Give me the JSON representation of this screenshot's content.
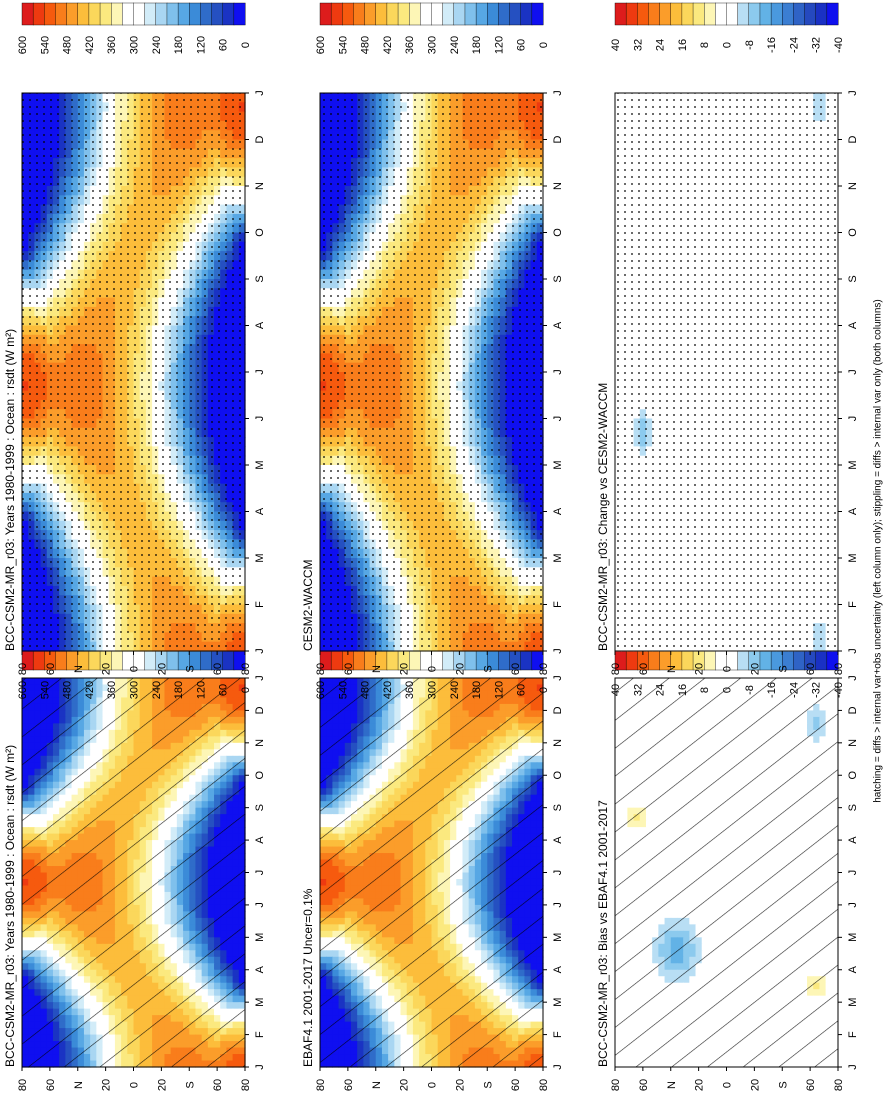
{
  "figure": {
    "footnote": "hatching = diffs > internal var+obs uncertainty (left column only); stippling = diffs > internal var only (both columns)"
  },
  "palettes": {
    "absolute": [
      "#dd1c1c",
      "#ee3a10",
      "#f65a0e",
      "#f97d1b",
      "#fb9d2a",
      "#fcbd3b",
      "#fbd75b",
      "#fbe97f",
      "#fdf6b6",
      "#ffffff",
      "#ffffff",
      "#d2ecf8",
      "#a9d6f2",
      "#7fc0ec",
      "#57a7e4",
      "#3b8bd8",
      "#2f6cc9",
      "#2550c1",
      "#1a33c3",
      "#0f0ff0"
    ],
    "difference": [
      "#dd1c1c",
      "#ee3a10",
      "#f65a0e",
      "#f97d1b",
      "#fb9d2a",
      "#fcbd3b",
      "#fbd75b",
      "#fbe97f",
      "#fdf6b6",
      "#ffffff",
      "#ffffff",
      "#b8def4",
      "#8ccaee",
      "#62b2e6",
      "#4a99de",
      "#3b7ed2",
      "#2f63c6",
      "#2549bf",
      "#1a31c4",
      "#0f10ee"
    ]
  },
  "chart_data": [
    {
      "type": "heatmap",
      "title": "BCC-CSM2-MR_r03: Years 1980-1999 : Ocean : rsdt (W m²)",
      "xlabel": "",
      "ylabel": "",
      "x": [
        "J",
        "F",
        "M",
        "A",
        "M",
        "J",
        "J",
        "A",
        "S",
        "O",
        "N",
        "D",
        "J"
      ],
      "y": [
        "80",
        "60",
        "N",
        "20",
        "0",
        "20",
        "S",
        "60",
        "80"
      ],
      "z_field": "insolation",
      "overlay": "hatching",
      "colorbar": {
        "palette": "absolute",
        "ticks": [
          "600",
          "540",
          "480",
          "420",
          "360",
          "300",
          "240",
          "180",
          "120",
          "60",
          "0"
        ],
        "range": [
          0,
          600
        ]
      }
    },
    {
      "type": "heatmap",
      "title": "BCC-CSM2-MR_r03: Years 1980-1999 : Ocean : rsdt (W m²)",
      "xlabel": "",
      "ylabel": "",
      "x": [
        "J",
        "F",
        "M",
        "A",
        "M",
        "J",
        "J",
        "A",
        "S",
        "O",
        "N",
        "D",
        "J"
      ],
      "y": [
        "80",
        "60",
        "N",
        "20",
        "0",
        "20",
        "S",
        "60",
        "80"
      ],
      "z_field": "insolation",
      "overlay": "stippling",
      "colorbar": {
        "palette": "absolute",
        "ticks": [
          "600",
          "540",
          "480",
          "420",
          "360",
          "300",
          "240",
          "180",
          "120",
          "60",
          "0"
        ],
        "range": [
          0,
          600
        ]
      }
    },
    {
      "type": "heatmap",
      "title": "EBAF4.1 2001-2017 Uncer=0.1%",
      "xlabel": "",
      "ylabel": "",
      "x": [
        "J",
        "F",
        "M",
        "A",
        "M",
        "J",
        "J",
        "A",
        "S",
        "O",
        "N",
        "D",
        "J"
      ],
      "y": [
        "80",
        "60",
        "N",
        "20",
        "0",
        "20",
        "S",
        "60",
        "80"
      ],
      "z_field": "insolation",
      "overlay": "hatching",
      "colorbar": {
        "palette": "absolute",
        "ticks": [
          "600",
          "540",
          "480",
          "420",
          "360",
          "300",
          "240",
          "180",
          "120",
          "60",
          "0"
        ],
        "range": [
          0,
          600
        ]
      }
    },
    {
      "type": "heatmap",
      "title": "CESM2-WACCM",
      "xlabel": "",
      "ylabel": "",
      "x": [
        "J",
        "F",
        "M",
        "A",
        "M",
        "J",
        "J",
        "A",
        "S",
        "O",
        "N",
        "D",
        "J"
      ],
      "y": [
        "80",
        "60",
        "N",
        "20",
        "0",
        "20",
        "S",
        "60",
        "80"
      ],
      "z_field": "insolation",
      "overlay": "stippling",
      "colorbar": {
        "palette": "absolute",
        "ticks": [
          "600",
          "540",
          "480",
          "420",
          "360",
          "300",
          "240",
          "180",
          "120",
          "60",
          "0"
        ],
        "range": [
          0,
          600
        ]
      }
    },
    {
      "type": "heatmap",
      "title": "BCC-CSM2-MR_r03: Bias vs EBAF4.1 2001-2017",
      "xlabel": "",
      "ylabel": "",
      "x": [
        "J",
        "F",
        "M",
        "A",
        "M",
        "J",
        "J",
        "A",
        "S",
        "O",
        "N",
        "D",
        "J"
      ],
      "y": [
        "80",
        "60",
        "N",
        "20",
        "0",
        "20",
        "S",
        "60",
        "80"
      ],
      "z_field": "bias",
      "overlay": "hatching",
      "colorbar": {
        "palette": "difference",
        "ticks": [
          "40",
          "32",
          "24",
          "16",
          "8",
          "0",
          "-8",
          "-16",
          "-24",
          "-32",
          "-40"
        ],
        "range": [
          -40,
          40
        ]
      }
    },
    {
      "type": "heatmap",
      "title": "BCC-CSM2-MR_r03: Change vs CESM2-WACCM",
      "xlabel": "",
      "ylabel": "",
      "x": [
        "J",
        "F",
        "M",
        "A",
        "M",
        "J",
        "J",
        "A",
        "S",
        "O",
        "N",
        "D",
        "J"
      ],
      "y": [
        "80",
        "60",
        "N",
        "20",
        "0",
        "20",
        "S",
        "60",
        "80"
      ],
      "z_field": "change",
      "overlay": "stippling",
      "colorbar": {
        "palette": "difference",
        "ticks": [
          "40",
          "32",
          "24",
          "16",
          "8",
          "0",
          "-8",
          "-16",
          "-24",
          "-32",
          "-40"
        ],
        "range": [
          -40,
          40
        ]
      }
    }
  ]
}
